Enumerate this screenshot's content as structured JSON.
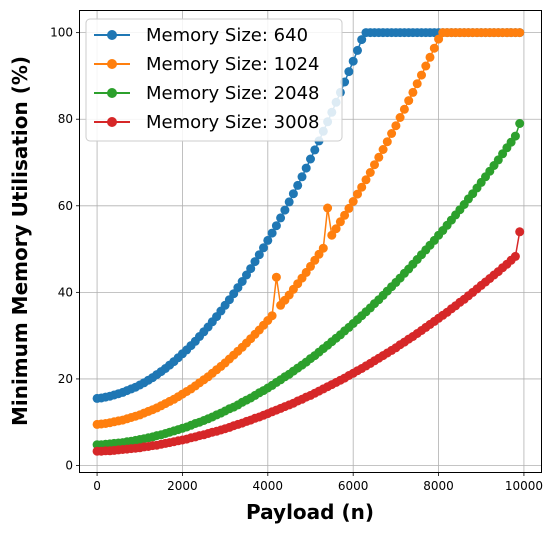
{
  "chart_data": {
    "type": "line",
    "xlabel": "Payload (n)",
    "ylabel": "Minimum Memory Utilisation (%)",
    "xlim": [
      -400,
      10400
    ],
    "ylim": [
      -1.5,
      105
    ],
    "xticks": [
      0,
      2000,
      4000,
      6000,
      8000,
      10000
    ],
    "yticks": [
      0,
      20,
      40,
      60,
      80,
      100
    ],
    "grid": true,
    "legend_position": "top-left",
    "x": [
      0,
      100,
      200,
      300,
      400,
      500,
      600,
      700,
      800,
      900,
      1000,
      1100,
      1200,
      1300,
      1400,
      1500,
      1600,
      1700,
      1800,
      1900,
      2000,
      2100,
      2200,
      2300,
      2400,
      2500,
      2600,
      2700,
      2800,
      2900,
      3000,
      3100,
      3200,
      3300,
      3400,
      3500,
      3600,
      3700,
      3800,
      3900,
      4000,
      4100,
      4200,
      4300,
      4400,
      4500,
      4600,
      4700,
      4800,
      4900,
      5000,
      5100,
      5200,
      5300,
      5400,
      5500,
      5600,
      5700,
      5800,
      5900,
      6000,
      6100,
      6200,
      6300,
      6400,
      6500,
      6600,
      6700,
      6800,
      6900,
      7000,
      7100,
      7200,
      7300,
      7400,
      7500,
      7600,
      7700,
      7800,
      7900,
      8000,
      8100,
      8200,
      8300,
      8400,
      8500,
      8600,
      8700,
      8800,
      8900,
      9000,
      9100,
      9200,
      9300,
      9400,
      9500,
      9600,
      9700,
      9800,
      9900
    ],
    "series": [
      {
        "name": "Memory Size: 640",
        "color": "#1f77b4",
        "values": [
          15.5,
          15.6,
          15.8,
          16.0,
          16.3,
          16.6,
          16.9,
          17.3,
          17.7,
          18.1,
          18.6,
          19.1,
          19.7,
          20.3,
          21.0,
          21.7,
          22.4,
          23.2,
          24.0,
          24.9,
          25.8,
          26.7,
          27.7,
          28.7,
          29.8,
          30.9,
          32.0,
          33.2,
          34.4,
          35.7,
          37.0,
          38.3,
          39.7,
          41.1,
          42.5,
          44.0,
          45.5,
          47.1,
          48.7,
          50.3,
          52.0,
          53.7,
          55.4,
          57.2,
          59.0,
          60.9,
          62.8,
          64.7,
          66.7,
          68.7,
          70.8,
          72.9,
          75.0,
          77.2,
          79.4,
          81.6,
          83.9,
          86.2,
          88.6,
          91.0,
          93.4,
          95.9,
          98.4,
          100,
          100,
          100,
          100,
          100,
          100,
          100,
          100,
          100,
          100,
          100,
          100,
          100,
          100,
          100,
          100,
          100,
          100,
          100,
          100,
          100,
          100,
          100,
          100,
          100,
          100,
          100,
          100,
          100,
          100,
          100,
          100,
          100,
          100,
          100,
          100,
          100
        ]
      },
      {
        "name": "Memory Size: 1024",
        "color": "#ff7f0e",
        "values": [
          9.5,
          9.6,
          9.7,
          9.9,
          10.1,
          10.3,
          10.5,
          10.8,
          11.1,
          11.4,
          11.7,
          12.1,
          12.5,
          12.9,
          13.3,
          13.8,
          14.3,
          14.8,
          15.3,
          15.9,
          16.5,
          17.1,
          17.7,
          18.4,
          19.1,
          19.8,
          20.5,
          21.3,
          22.1,
          22.9,
          23.7,
          24.6,
          25.5,
          26.4,
          27.3,
          28.3,
          29.3,
          30.3,
          31.3,
          32.4,
          33.5,
          34.6,
          43.5,
          37.0,
          38.2,
          39.4,
          40.7,
          42.0,
          43.3,
          44.6,
          46.0,
          47.4,
          48.8,
          50.2,
          59.5,
          53.2,
          54.7,
          56.3,
          57.8,
          59.4,
          61.0,
          62.7,
          64.3,
          66.0,
          67.7,
          69.5,
          71.2,
          73.0,
          74.8,
          76.7,
          78.5,
          80.4,
          82.3,
          84.3,
          86.2,
          88.2,
          90.2,
          92.3,
          94.3,
          96.4,
          98.5,
          100,
          100,
          100,
          100,
          100,
          100,
          100,
          100,
          100,
          100,
          100,
          100,
          100,
          100,
          100,
          100,
          100,
          100,
          100
        ]
      },
      {
        "name": "Memory Size: 2048",
        "color": "#2ca02c",
        "values": [
          4.8,
          4.8,
          4.9,
          5.0,
          5.1,
          5.2,
          5.3,
          5.5,
          5.6,
          5.8,
          6.0,
          6.2,
          6.4,
          6.6,
          6.9,
          7.1,
          7.4,
          7.7,
          8.0,
          8.3,
          8.6,
          8.9,
          9.3,
          9.7,
          10.0,
          10.4,
          10.8,
          11.2,
          11.7,
          12.1,
          12.6,
          13.1,
          13.5,
          14.0,
          14.6,
          15.1,
          15.6,
          16.2,
          16.8,
          17.3,
          17.9,
          18.5,
          19.2,
          19.8,
          20.5,
          21.1,
          21.8,
          22.5,
          23.2,
          23.9,
          24.7,
          25.4,
          26.2,
          27.0,
          27.8,
          28.6,
          29.4,
          30.2,
          31.1,
          31.9,
          32.8,
          33.7,
          34.6,
          35.5,
          36.4,
          37.4,
          38.3,
          39.3,
          40.3,
          41.3,
          42.3,
          43.3,
          44.4,
          45.4,
          46.5,
          47.6,
          48.7,
          49.8,
          50.9,
          52.0,
          53.2,
          54.3,
          55.5,
          56.7,
          57.9,
          59.1,
          60.3,
          61.6,
          62.8,
          64.1,
          65.4,
          66.7,
          68.0,
          69.3,
          70.6,
          72.0,
          73.4,
          74.7,
          76.1,
          79.0
        ]
      },
      {
        "name": "Memory Size: 3008",
        "color": "#d62728",
        "values": [
          3.3,
          3.3,
          3.4,
          3.4,
          3.5,
          3.6,
          3.7,
          3.8,
          3.9,
          4.0,
          4.1,
          4.3,
          4.4,
          4.6,
          4.7,
          4.9,
          5.1,
          5.3,
          5.5,
          5.7,
          5.9,
          6.1,
          6.4,
          6.6,
          6.9,
          7.1,
          7.4,
          7.7,
          7.9,
          8.2,
          8.5,
          8.8,
          9.2,
          9.5,
          9.8,
          10.2,
          10.5,
          10.9,
          11.2,
          11.6,
          12.0,
          12.4,
          12.8,
          13.2,
          13.6,
          14.0,
          14.4,
          14.9,
          15.3,
          15.8,
          16.2,
          16.7,
          17.2,
          17.7,
          18.2,
          18.7,
          19.2,
          19.7,
          20.2,
          20.8,
          21.3,
          21.9,
          22.4,
          23.0,
          23.6,
          24.2,
          24.8,
          25.4,
          26.0,
          26.6,
          27.2,
          27.9,
          28.5,
          29.2,
          29.8,
          30.5,
          31.2,
          31.9,
          32.6,
          33.3,
          34.0,
          34.7,
          35.4,
          36.2,
          36.9,
          37.7,
          38.4,
          39.2,
          40.0,
          40.8,
          41.6,
          42.4,
          43.2,
          44.0,
          44.8,
          45.7,
          46.5,
          47.4,
          48.3,
          54.0
        ]
      }
    ]
  }
}
